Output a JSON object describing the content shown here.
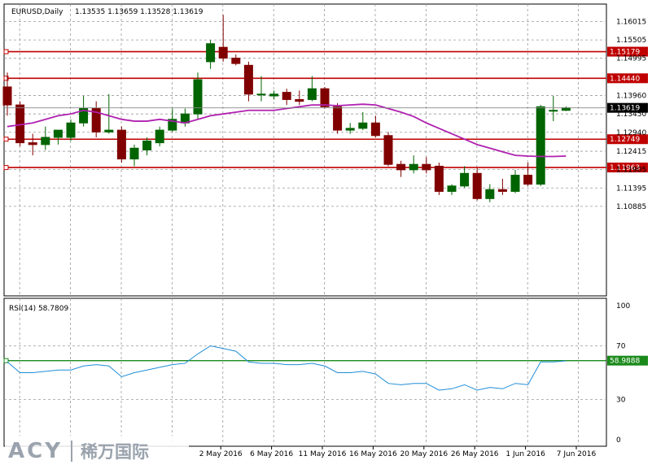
{
  "header": {
    "symbol": "EURUSD,Daily",
    "ohlc": "1.13535 1.13659 1.13528 1.13619"
  },
  "rsi_header": "RSI(14) 58.7809",
  "watermark": {
    "brand": "ACY",
    "cn": "稀万国际"
  },
  "colors": {
    "bull": "#006400",
    "bear": "#800000",
    "ma": "#b020b0",
    "level_line": "#c00000",
    "rsi_line": "#1f8dd6",
    "rsi_level": "#1a8a1a",
    "grid": "#9a9a9a"
  },
  "chart_data": [
    {
      "type": "candlestick",
      "title": "EURUSD,Daily",
      "ylim": [
        1.084,
        1.165
      ],
      "y_ticks": [
        "1.16015",
        "1.15505",
        "1.14995",
        "1.13960",
        "1.13450",
        "1.12940",
        "1.12415",
        "1.11905",
        "1.11395",
        "1.10885"
      ],
      "x_ticks": [
        "2 May 2016",
        "6 May 2016",
        "11 May 2016",
        "16 May 2016",
        "20 May 2016",
        "26 May 2016",
        "1 Jun 2016",
        "7 Jun 2016"
      ],
      "levels": [
        {
          "label": "1.15179",
          "value": 1.15179,
          "color": "#c00000"
        },
        {
          "label": "1.14440",
          "value": 1.1444,
          "color": "#c00000"
        },
        {
          "label": "1.12749",
          "value": 1.12749,
          "color": "#c00000"
        },
        {
          "label": "1.11963",
          "value": 1.11963,
          "color": "#c00000"
        }
      ],
      "current_price": {
        "label": "1.13619",
        "value": 1.13619
      },
      "candles": [
        {
          "o": 1.142,
          "h": 1.146,
          "l": 1.134,
          "c": 1.137
        },
        {
          "o": 1.137,
          "h": 1.138,
          "l": 1.1255,
          "c": 1.1265
        },
        {
          "o": 1.1265,
          "h": 1.129,
          "l": 1.123,
          "c": 1.126
        },
        {
          "o": 1.126,
          "h": 1.131,
          "l": 1.1245,
          "c": 1.128
        },
        {
          "o": 1.128,
          "h": 1.13,
          "l": 1.126,
          "c": 1.13
        },
        {
          "o": 1.128,
          "h": 1.133,
          "l": 1.127,
          "c": 1.132
        },
        {
          "o": 1.132,
          "h": 1.1395,
          "l": 1.131,
          "c": 1.136
        },
        {
          "o": 1.136,
          "h": 1.138,
          "l": 1.128,
          "c": 1.1295
        },
        {
          "o": 1.1295,
          "h": 1.14,
          "l": 1.129,
          "c": 1.13
        },
        {
          "o": 1.13,
          "h": 1.131,
          "l": 1.121,
          "c": 1.122
        },
        {
          "o": 1.122,
          "h": 1.126,
          "l": 1.12,
          "c": 1.125
        },
        {
          "o": 1.1245,
          "h": 1.128,
          "l": 1.123,
          "c": 1.127
        },
        {
          "o": 1.1265,
          "h": 1.131,
          "l": 1.1255,
          "c": 1.13
        },
        {
          "o": 1.13,
          "h": 1.136,
          "l": 1.1295,
          "c": 1.133
        },
        {
          "o": 1.132,
          "h": 1.136,
          "l": 1.131,
          "c": 1.1345
        },
        {
          "o": 1.1345,
          "h": 1.146,
          "l": 1.133,
          "c": 1.144
        },
        {
          "o": 1.149,
          "h": 1.155,
          "l": 1.147,
          "c": 1.154
        },
        {
          "o": 1.153,
          "h": 1.162,
          "l": 1.149,
          "c": 1.15
        },
        {
          "o": 1.15,
          "h": 1.151,
          "l": 1.148,
          "c": 1.1485
        },
        {
          "o": 1.148,
          "h": 1.149,
          "l": 1.138,
          "c": 1.14
        },
        {
          "o": 1.14,
          "h": 1.145,
          "l": 1.138,
          "c": 1.14
        },
        {
          "o": 1.1395,
          "h": 1.141,
          "l": 1.1385,
          "c": 1.14
        },
        {
          "o": 1.1405,
          "h": 1.1415,
          "l": 1.137,
          "c": 1.1385
        },
        {
          "o": 1.1385,
          "h": 1.141,
          "l": 1.137,
          "c": 1.138
        },
        {
          "o": 1.1385,
          "h": 1.145,
          "l": 1.138,
          "c": 1.1415
        },
        {
          "o": 1.1415,
          "h": 1.142,
          "l": 1.136,
          "c": 1.1365
        },
        {
          "o": 1.1365,
          "h": 1.1375,
          "l": 1.129,
          "c": 1.13
        },
        {
          "o": 1.13,
          "h": 1.132,
          "l": 1.129,
          "c": 1.1305
        },
        {
          "o": 1.1305,
          "h": 1.135,
          "l": 1.13,
          "c": 1.132
        },
        {
          "o": 1.132,
          "h": 1.134,
          "l": 1.128,
          "c": 1.1285
        },
        {
          "o": 1.1285,
          "h": 1.1295,
          "l": 1.12,
          "c": 1.1205
        },
        {
          "o": 1.1205,
          "h": 1.1215,
          "l": 1.117,
          "c": 1.119
        },
        {
          "o": 1.119,
          "h": 1.123,
          "l": 1.118,
          "c": 1.1205
        },
        {
          "o": 1.1205,
          "h": 1.1225,
          "l": 1.118,
          "c": 1.119
        },
        {
          "o": 1.12,
          "h": 1.121,
          "l": 1.112,
          "c": 1.113
        },
        {
          "o": 1.113,
          "h": 1.115,
          "l": 1.112,
          "c": 1.1145
        },
        {
          "o": 1.1145,
          "h": 1.12,
          "l": 1.114,
          "c": 1.118
        },
        {
          "o": 1.118,
          "h": 1.1195,
          "l": 1.1105,
          "c": 1.111
        },
        {
          "o": 1.111,
          "h": 1.115,
          "l": 1.11,
          "c": 1.1135
        },
        {
          "o": 1.1135,
          "h": 1.1165,
          "l": 1.112,
          "c": 1.113
        },
        {
          "o": 1.113,
          "h": 1.119,
          "l": 1.1125,
          "c": 1.1175
        },
        {
          "o": 1.1175,
          "h": 1.121,
          "l": 1.1145,
          "c": 1.115
        },
        {
          "o": 1.115,
          "h": 1.137,
          "l": 1.1145,
          "c": 1.1365
        },
        {
          "o": 1.1355,
          "h": 1.1395,
          "l": 1.1325,
          "c": 1.1355
        },
        {
          "o": 1.1355,
          "h": 1.1366,
          "l": 1.1353,
          "c": 1.1362
        }
      ],
      "ma": [
        1.131,
        1.1315,
        1.132,
        1.133,
        1.134,
        1.1345,
        1.1355,
        1.135,
        1.134,
        1.133,
        1.1325,
        1.1325,
        1.133,
        1.1325,
        1.132,
        1.133,
        1.134,
        1.1345,
        1.135,
        1.1355,
        1.1355,
        1.1355,
        1.136,
        1.1365,
        1.137,
        1.137,
        1.1368,
        1.137,
        1.1372,
        1.137,
        1.136,
        1.135,
        1.1338,
        1.132,
        1.1305,
        1.129,
        1.1275,
        1.126,
        1.125,
        1.124,
        1.123,
        1.1228,
        1.1227,
        1.1227,
        1.1228
      ]
    },
    {
      "type": "line",
      "title": "RSI(14) 58.7809",
      "ylim": [
        0,
        100
      ],
      "y_ticks": [
        "100",
        "70",
        "30",
        "0"
      ],
      "level": {
        "label": "58.9888",
        "value": 58.9888
      },
      "values": [
        58,
        50,
        50,
        51,
        52,
        52,
        55,
        56,
        55,
        47,
        50,
        52,
        54,
        56,
        57,
        64,
        70,
        68,
        66,
        58,
        57,
        57,
        56,
        56,
        57,
        55,
        50,
        50,
        51,
        49,
        42,
        41,
        42,
        42,
        37,
        38,
        41,
        37,
        39,
        38,
        42,
        41,
        58,
        58,
        58.7809
      ]
    }
  ]
}
